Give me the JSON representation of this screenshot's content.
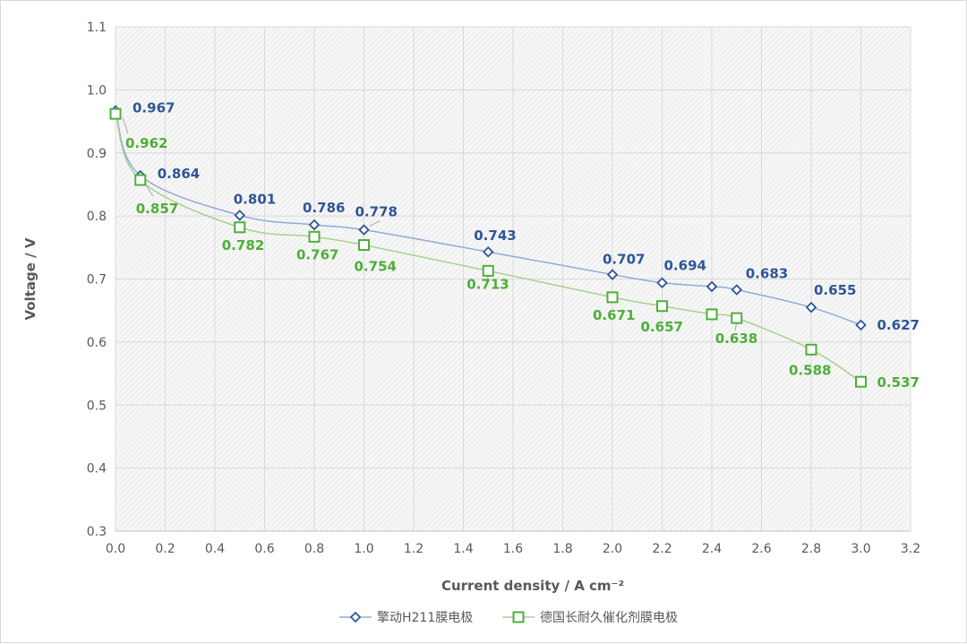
{
  "chart_data": {
    "type": "line",
    "title": "",
    "xlabel": "Current density / A cm⁻²",
    "ylabel": "Voltage / V",
    "xlim": [
      0.0,
      3.2
    ],
    "ylim": [
      0.3,
      1.1
    ],
    "x_ticks": [
      "0.0",
      "0.2",
      "0.4",
      "0.6",
      "0.8",
      "1.0",
      "1.2",
      "1.4",
      "1.6",
      "1.8",
      "2.0",
      "2.2",
      "2.4",
      "2.6",
      "2.8",
      "3.0",
      "3.2"
    ],
    "y_ticks": [
      "0.3",
      "0.4",
      "0.5",
      "0.6",
      "0.7",
      "0.8",
      "0.9",
      "1.0",
      "1.1"
    ],
    "grid": true,
    "legend_position": "bottom",
    "series": [
      {
        "name": "擎动H211膜电极",
        "color": "#2f5597",
        "line_color": "#8faadc",
        "marker": "diamond",
        "x": [
          0.0,
          0.1,
          0.5,
          0.8,
          1.0,
          1.5,
          2.0,
          2.2,
          2.4,
          2.5,
          2.8,
          3.0
        ],
        "y": [
          0.967,
          0.864,
          0.801,
          0.786,
          0.778,
          0.743,
          0.707,
          0.694,
          0.688,
          0.683,
          0.655,
          0.627
        ],
        "labels": [
          "0.967",
          "0.864",
          "0.801",
          "0.786",
          "0.778",
          "0.743",
          "0.707",
          "0.694",
          "",
          "0.683",
          "0.655",
          "0.627"
        ]
      },
      {
        "name": "德国长耐久催化剂膜电极",
        "color": "#4eae3a",
        "line_color": "#a9d18e",
        "marker": "square",
        "x": [
          0.0,
          0.1,
          0.5,
          0.8,
          1.0,
          1.5,
          2.0,
          2.2,
          2.4,
          2.5,
          2.8,
          3.0
        ],
        "y": [
          0.962,
          0.857,
          0.782,
          0.767,
          0.754,
          0.713,
          0.671,
          0.657,
          0.644,
          0.638,
          0.588,
          0.537
        ],
        "labels": [
          "0.962",
          "0.857",
          "0.782",
          "0.767",
          "0.754",
          "0.713",
          "0.671",
          "0.657",
          "",
          "0.638",
          "0.588",
          "0.537"
        ]
      }
    ]
  }
}
